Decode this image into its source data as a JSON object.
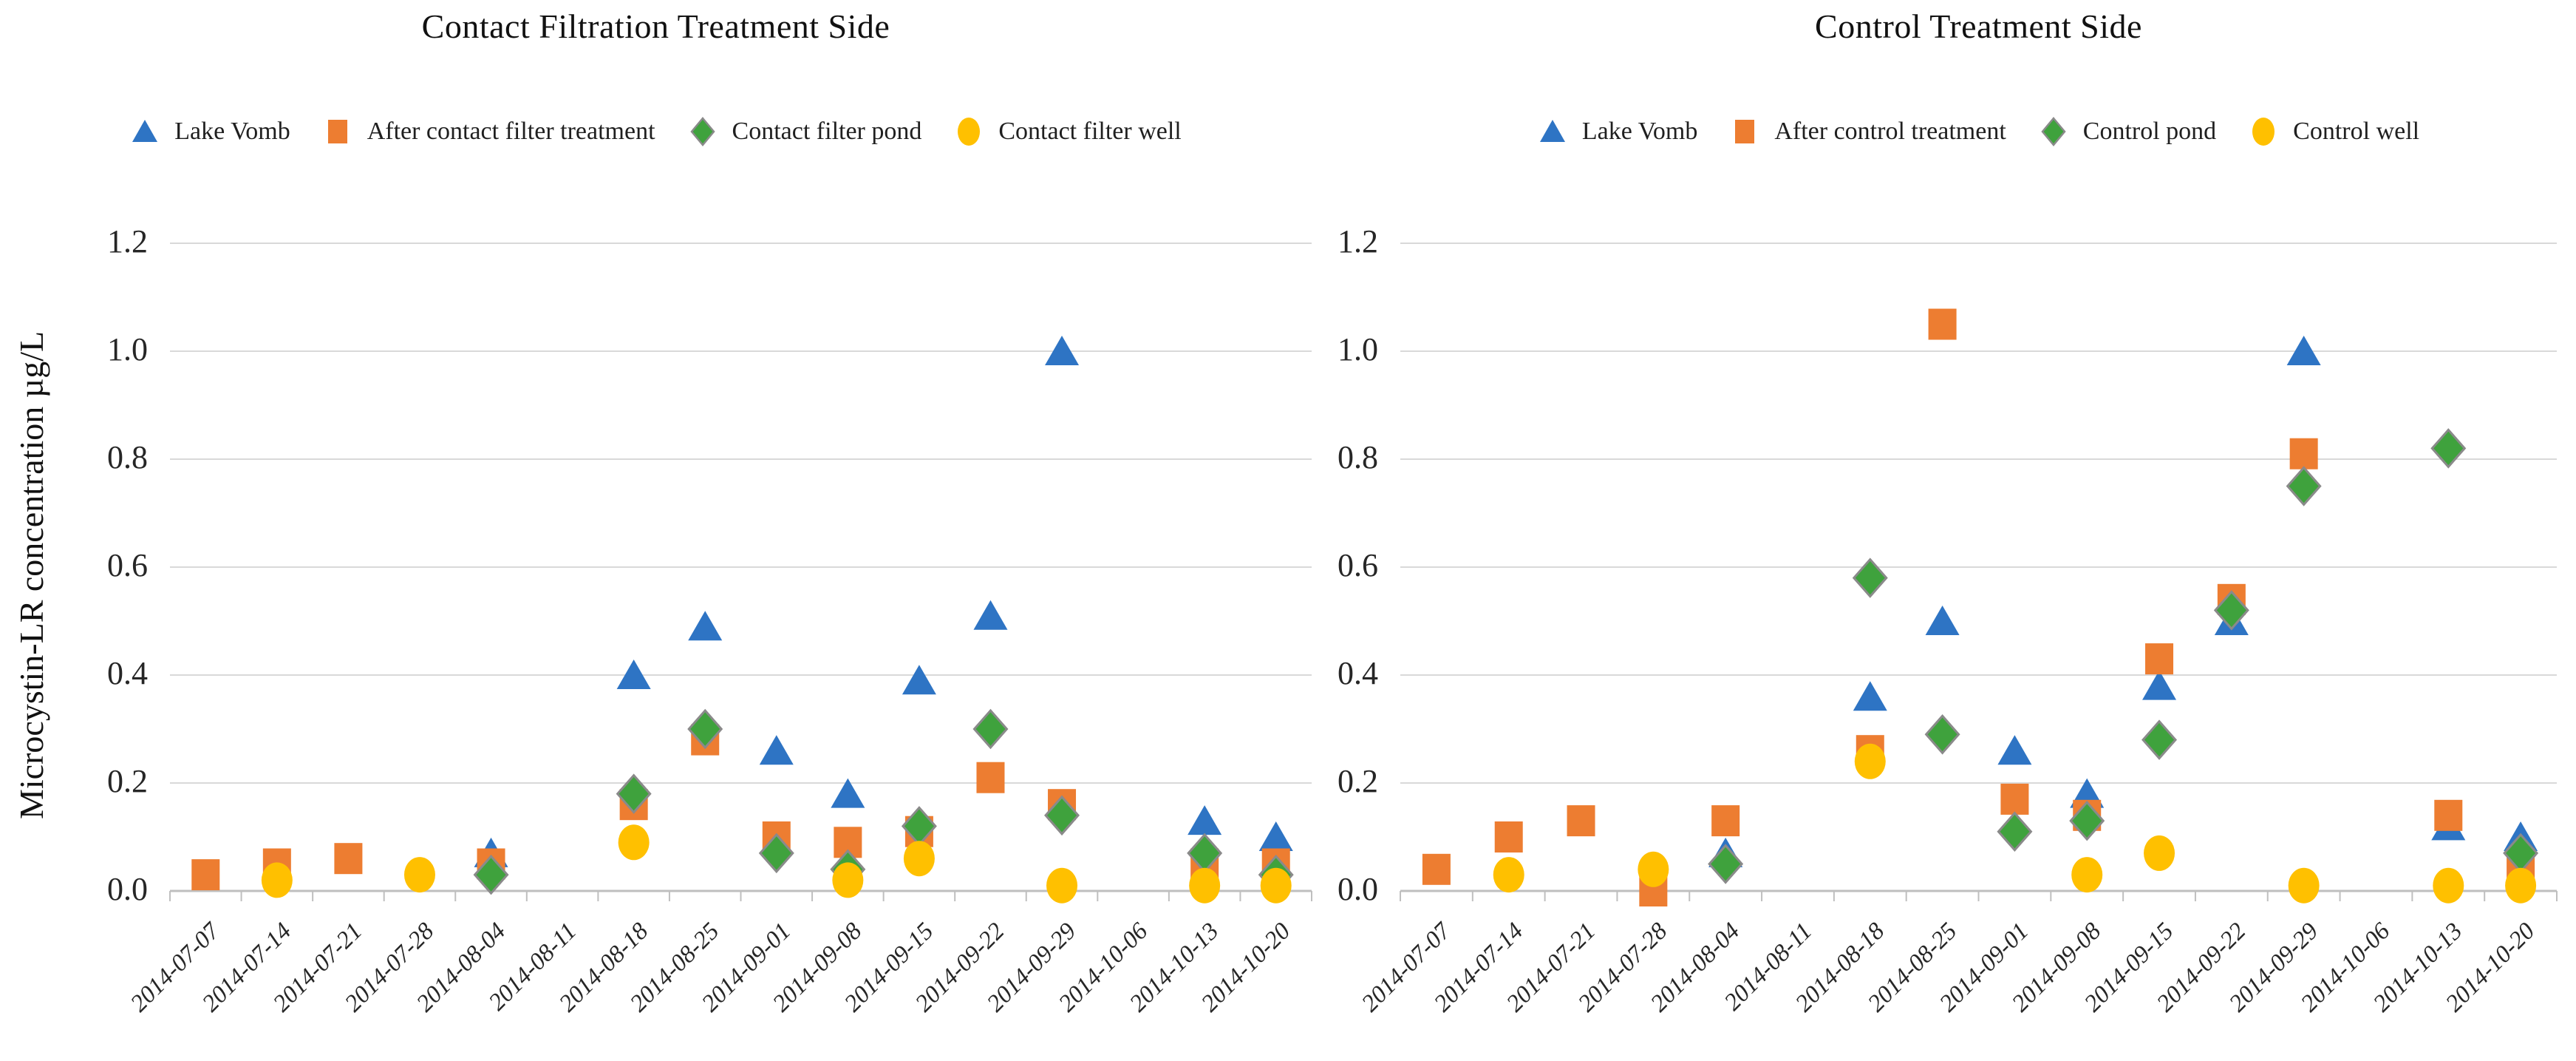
{
  "page": {
    "background": "#ffffff"
  },
  "colors": {
    "grid": "#D9D9D9",
    "axis": "#BFBFBF",
    "diamond_outline": "#8A8A8A",
    "text": "#1A1A1A",
    "series_blue": "#2E74C4",
    "series_orange": "#ED7D31",
    "series_green": "#3FA23D",
    "series_yellow": "#FFC000"
  },
  "y_axis": {
    "title": "Microcystin-LR concentration µg/L",
    "tick_labels": [
      "1.2",
      "1.0",
      "0.8",
      "0.6",
      "0.4",
      "0.2",
      "0.0"
    ],
    "min": 0.0,
    "max": 1.2
  },
  "x_axis": {
    "categories": [
      "2014-07-07",
      "2014-07-14",
      "2014-07-21",
      "2014-07-28",
      "2014-08-04",
      "2014-08-11",
      "2014-08-18",
      "2014-08-25",
      "2014-09-01",
      "2014-09-08",
      "2014-09-15",
      "2014-09-22",
      "2014-09-29",
      "2014-10-06",
      "2014-10-13",
      "2014-10-20"
    ]
  },
  "chart_data": [
    {
      "type": "scatter",
      "title": "Contact Filtration Treatment Side",
      "xlabel": "",
      "ylabel": "Microcystin-LR concentration µg/L",
      "ylim": [
        0,
        1.2
      ],
      "grid": true,
      "legend_position": "top",
      "series": [
        {
          "name": "Lake Vomb",
          "marker": "triangle",
          "color": "#2E74C4",
          "points": [
            [
              "2014-08-04",
              0.07
            ],
            [
              "2014-08-18",
              0.4
            ],
            [
              "2014-08-25",
              0.49
            ],
            [
              "2014-09-01",
              0.26
            ],
            [
              "2014-09-08",
              0.18
            ],
            [
              "2014-09-15",
              0.39
            ],
            [
              "2014-09-22",
              0.51
            ],
            [
              "2014-09-29",
              1.0
            ],
            [
              "2014-10-13",
              0.13
            ],
            [
              "2014-10-20",
              0.1
            ]
          ]
        },
        {
          "name": "After contact filter treatment",
          "marker": "square",
          "color": "#ED7D31",
          "points": [
            [
              "2014-07-07",
              0.03
            ],
            [
              "2014-07-14",
              0.05
            ],
            [
              "2014-07-21",
              0.06
            ],
            [
              "2014-08-04",
              0.05
            ],
            [
              "2014-08-18",
              0.16
            ],
            [
              "2014-08-25",
              0.28
            ],
            [
              "2014-09-01",
              0.1
            ],
            [
              "2014-09-08",
              0.09
            ],
            [
              "2014-09-15",
              0.11
            ],
            [
              "2014-09-22",
              0.21
            ],
            [
              "2014-09-29",
              0.16
            ],
            [
              "2014-10-13",
              0.05
            ],
            [
              "2014-10-20",
              0.05
            ]
          ]
        },
        {
          "name": "Contact filter pond",
          "marker": "diamond",
          "color": "#3FA23D",
          "points": [
            [
              "2014-08-04",
              0.03
            ],
            [
              "2014-08-18",
              0.18
            ],
            [
              "2014-08-25",
              0.3
            ],
            [
              "2014-09-01",
              0.07
            ],
            [
              "2014-09-08",
              0.04
            ],
            [
              "2014-09-15",
              0.12
            ],
            [
              "2014-09-22",
              0.3
            ],
            [
              "2014-09-29",
              0.14
            ],
            [
              "2014-10-13",
              0.07
            ],
            [
              "2014-10-20",
              0.03
            ]
          ]
        },
        {
          "name": "Contact filter well",
          "marker": "circle",
          "color": "#FFC000",
          "points": [
            [
              "2014-07-14",
              0.02
            ],
            [
              "2014-07-28",
              0.03
            ],
            [
              "2014-08-18",
              0.09
            ],
            [
              "2014-09-08",
              0.02
            ],
            [
              "2014-09-15",
              0.06
            ],
            [
              "2014-09-29",
              0.01
            ],
            [
              "2014-10-13",
              0.01
            ],
            [
              "2014-10-20",
              0.01
            ]
          ]
        }
      ]
    },
    {
      "type": "scatter",
      "title": "Control Treatment Side",
      "xlabel": "",
      "ylabel": "Microcystin-LR concentration µg/L",
      "ylim": [
        0,
        1.2
      ],
      "grid": true,
      "legend_position": "top",
      "series": [
        {
          "name": "Lake Vomb",
          "marker": "triangle",
          "color": "#2E74C4",
          "points": [
            [
              "2014-08-04",
              0.07
            ],
            [
              "2014-08-18",
              0.36
            ],
            [
              "2014-08-25",
              0.5
            ],
            [
              "2014-09-01",
              0.26
            ],
            [
              "2014-09-08",
              0.18
            ],
            [
              "2014-09-15",
              0.38
            ],
            [
              "2014-09-22",
              0.5
            ],
            [
              "2014-09-29",
              1.0
            ],
            [
              "2014-10-13",
              0.12
            ],
            [
              "2014-10-20",
              0.1
            ]
          ]
        },
        {
          "name": "After control treatment",
          "marker": "square",
          "color": "#ED7D31",
          "points": [
            [
              "2014-07-07",
              0.04
            ],
            [
              "2014-07-14",
              0.1
            ],
            [
              "2014-07-21",
              0.13
            ],
            [
              "2014-07-28",
              0.0
            ],
            [
              "2014-08-04",
              0.13
            ],
            [
              "2014-08-18",
              0.26
            ],
            [
              "2014-08-25",
              1.05
            ],
            [
              "2014-09-01",
              0.17
            ],
            [
              "2014-09-08",
              0.14
            ],
            [
              "2014-09-15",
              0.43
            ],
            [
              "2014-09-22",
              0.54
            ],
            [
              "2014-09-29",
              0.81
            ],
            [
              "2014-10-13",
              0.14
            ],
            [
              "2014-10-20",
              0.05
            ]
          ]
        },
        {
          "name": "Control pond",
          "marker": "diamond",
          "color": "#3FA23D",
          "points": [
            [
              "2014-08-04",
              0.05
            ],
            [
              "2014-08-18",
              0.58
            ],
            [
              "2014-08-25",
              0.29
            ],
            [
              "2014-09-01",
              0.11
            ],
            [
              "2014-09-08",
              0.13
            ],
            [
              "2014-09-15",
              0.28
            ],
            [
              "2014-09-22",
              0.52
            ],
            [
              "2014-09-29",
              0.75
            ],
            [
              "2014-10-13",
              0.82
            ],
            [
              "2014-10-20",
              0.07
            ]
          ]
        },
        {
          "name": "Control well",
          "marker": "circle",
          "color": "#FFC000",
          "points": [
            [
              "2014-07-14",
              0.03
            ],
            [
              "2014-07-28",
              0.04
            ],
            [
              "2014-08-18",
              0.24
            ],
            [
              "2014-09-08",
              0.03
            ],
            [
              "2014-09-15",
              0.07
            ],
            [
              "2014-09-29",
              0.01
            ],
            [
              "2014-10-13",
              0.01
            ],
            [
              "2014-10-20",
              0.01
            ]
          ]
        }
      ]
    }
  ]
}
